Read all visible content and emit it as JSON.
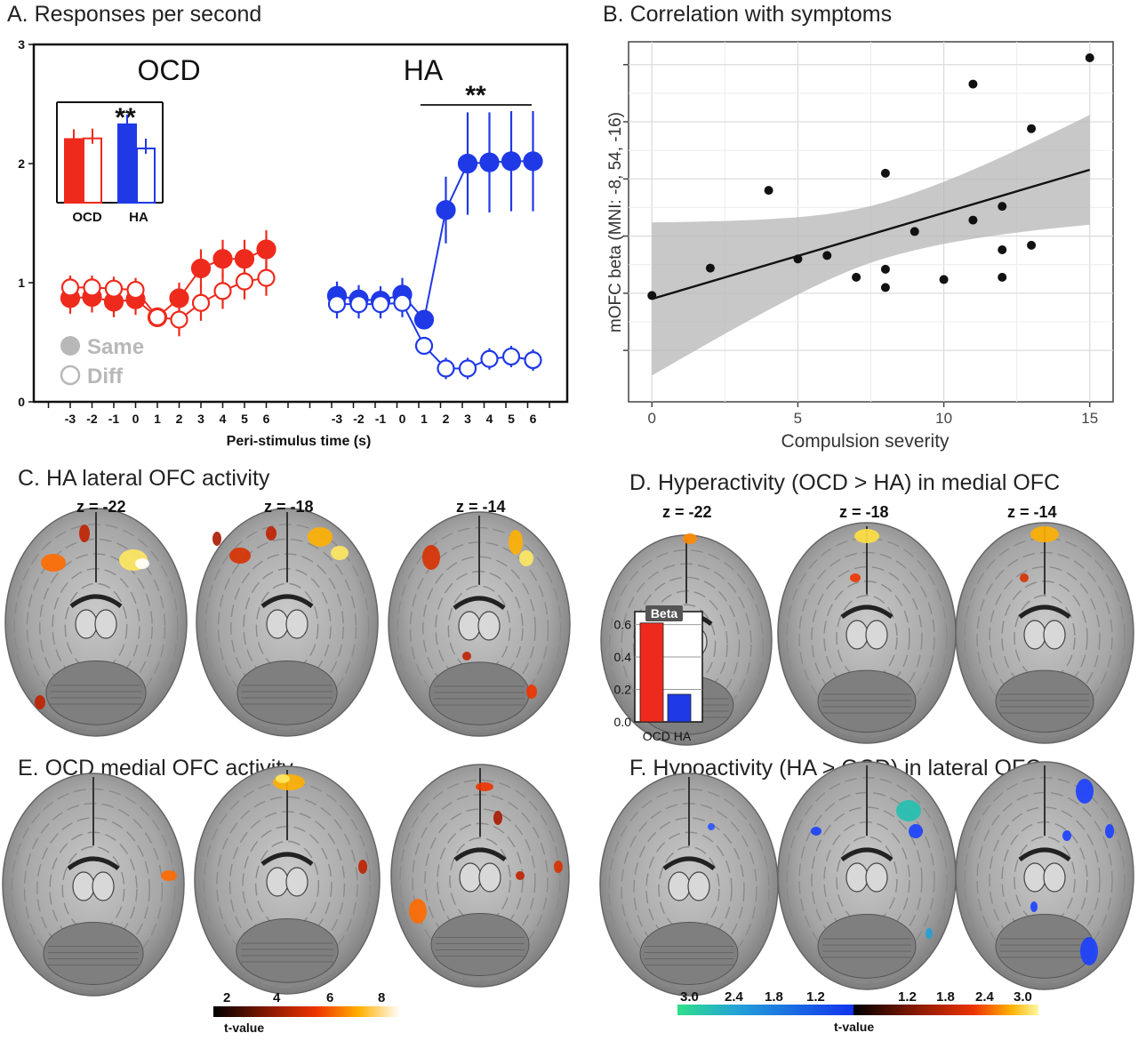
{
  "panelA": {
    "title": "A. Responses per second",
    "group1": "OCD",
    "group2": "HA",
    "sig_mark": "**",
    "inset_sig": "**",
    "legend_same": "Same",
    "legend_diff": "Diff",
    "xlabel": "Peri-stimulus time (s)",
    "colors": {
      "OCD": "#ee2a1c",
      "HA": "#1f39e6",
      "legend": "#b8b8b8"
    }
  },
  "panelB": {
    "title": "B. Correlation with symptoms"
  },
  "panelC": {
    "title": "C. HA lateral OFC activity"
  },
  "panelD": {
    "title": "D. Hyperactivity (OCD > HA) in medial OFC",
    "inset_title": "Beta",
    "inset_labels": "OCD HA"
  },
  "panelE": {
    "title": "E. OCD medial OFC activity"
  },
  "panelF": {
    "title": "F. Hypoactivity (HA > OCD) in lateral OFC"
  },
  "slices": {
    "s1": "z = -22",
    "s2": "z = -18",
    "s3": "z = -14"
  },
  "colorbar_hot": {
    "ticks": [
      "2",
      "4",
      "6",
      "8"
    ],
    "label": "t-value"
  },
  "colorbar_div": {
    "ticks": [
      "3.0",
      "2.4",
      "1.8",
      "1.2",
      "1.2",
      "1.8",
      "2.4",
      "3.0"
    ],
    "label": "t-value"
  },
  "chart_data": [
    {
      "type": "line",
      "panel": "A",
      "x_tick_labels": [
        "-3",
        "-2",
        "-1",
        "0",
        "1",
        "2",
        "3",
        "4",
        "5",
        "6"
      ],
      "xlabel": "Peri-stimulus time (s)",
      "ylim": [
        0,
        3
      ],
      "y_ticks": [
        0,
        1,
        2,
        3
      ],
      "groups": [
        {
          "name": "OCD",
          "series": [
            {
              "name": "Same",
              "x": [
                -3,
                -2,
                -1,
                0,
                1,
                2,
                3,
                4,
                5,
                6
              ],
              "y": [
                0.87,
                0.88,
                0.84,
                0.86,
                0.71,
                0.87,
                1.12,
                1.2,
                1.2,
                1.28
              ],
              "err": [
                0.13,
                0.13,
                0.13,
                0.13,
                0.06,
                0.13,
                0.16,
                0.16,
                0.16,
                0.16
              ]
            },
            {
              "name": "Diff",
              "x": [
                -3,
                -2,
                -1,
                0,
                1,
                2,
                3,
                4,
                5,
                6
              ],
              "y": [
                0.96,
                0.96,
                0.95,
                0.94,
                0.71,
                0.69,
                0.83,
                0.93,
                1.01,
                1.04
              ],
              "err": [
                0.1,
                0.1,
                0.1,
                0.1,
                0.07,
                0.14,
                0.15,
                0.15,
                0.15,
                0.15
              ]
            }
          ]
        },
        {
          "name": "HA",
          "series": [
            {
              "name": "Same",
              "x": [
                -3,
                -2,
                -1,
                0,
                1,
                2,
                3,
                4,
                5,
                6
              ],
              "y": [
                0.89,
                0.86,
                0.85,
                0.9,
                0.69,
                1.61,
                2.0,
                2.01,
                2.02,
                2.02
              ],
              "err": [
                0.12,
                0.12,
                0.12,
                0.14,
                0.05,
                0.28,
                0.43,
                0.42,
                0.42,
                0.42
              ]
            },
            {
              "name": "Diff",
              "x": [
                -3,
                -2,
                -1,
                0,
                1,
                2,
                3,
                4,
                5,
                6
              ],
              "y": [
                0.82,
                0.82,
                0.82,
                0.83,
                0.47,
                0.28,
                0.28,
                0.36,
                0.38,
                0.35
              ],
              "err": [
                0.12,
                0.12,
                0.12,
                0.12,
                0.07,
                0.09,
                0.09,
                0.09,
                0.09,
                0.09
              ]
            }
          ]
        }
      ],
      "inset": {
        "type": "bar",
        "categories": [
          "OCD",
          "HA"
        ],
        "series": [
          {
            "name": "Same",
            "values": [
              1.95,
              2.17
            ]
          },
          {
            "name": "Diff",
            "values": [
              1.96,
              1.81
            ]
          }
        ],
        "ylim": [
          1.0,
          2.5
        ]
      }
    },
    {
      "type": "scatter",
      "panel": "B",
      "xlabel": "Compulsion severity",
      "ylabel": "mOFC beta (MNI: -8, 54, -16)",
      "xlim": [
        -0.8,
        15.8
      ],
      "x_ticks": [
        0,
        5,
        10,
        15
      ],
      "points": [
        {
          "x": 0,
          "y": -0.02
        },
        {
          "x": 2,
          "y": 0.22
        },
        {
          "x": 4,
          "y": 0.9
        },
        {
          "x": 5,
          "y": 0.3
        },
        {
          "x": 6,
          "y": 0.33
        },
        {
          "x": 7,
          "y": 0.14
        },
        {
          "x": 8,
          "y": 0.05
        },
        {
          "x": 8,
          "y": 0.21
        },
        {
          "x": 8,
          "y": 1.05
        },
        {
          "x": 9,
          "y": 0.54
        },
        {
          "x": 10,
          "y": 0.12
        },
        {
          "x": 11,
          "y": 0.64
        },
        {
          "x": 11,
          "y": 1.83
        },
        {
          "x": 12,
          "y": 0.14
        },
        {
          "x": 12,
          "y": 0.38
        },
        {
          "x": 12,
          "y": 0.76
        },
        {
          "x": 13,
          "y": 0.42
        },
        {
          "x": 13,
          "y": 1.44
        },
        {
          "x": 15,
          "y": 2.06
        }
      ],
      "fit": {
        "x": [
          0,
          15
        ],
        "y": [
          -0.05,
          1.08
        ]
      },
      "band": {
        "x": [
          0,
          15
        ],
        "lower": [
          -0.72,
          0.6
        ],
        "upper": [
          0.55,
          1.56
        ]
      }
    },
    {
      "type": "bar",
      "panel": "D-inset",
      "title": "Beta",
      "categories": [
        "OCD",
        "HA"
      ],
      "values": [
        0.61,
        0.17
      ],
      "y_ticks": [
        "0.0",
        "0.2",
        "0.4",
        "0.6"
      ],
      "ylim": [
        0,
        0.68
      ]
    }
  ]
}
